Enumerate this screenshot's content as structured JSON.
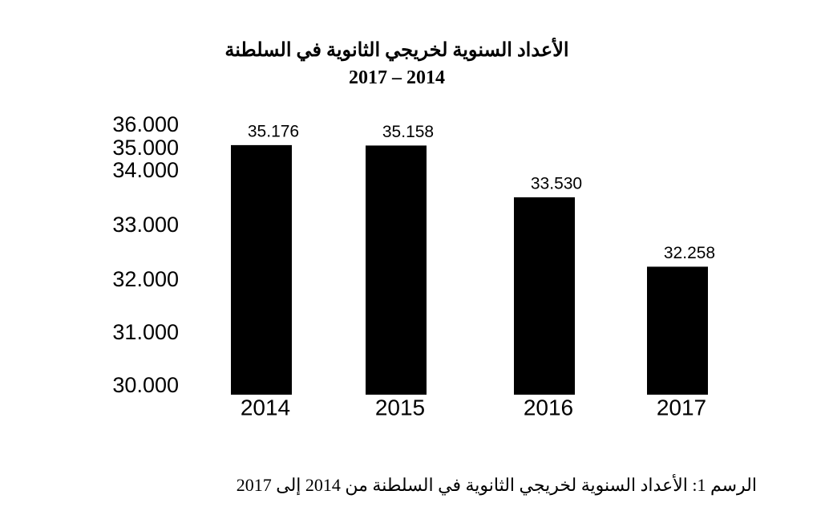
{
  "chart_data": {
    "type": "bar",
    "title": "الأعداد السنوية لخريجي الثانوية في السلطنة",
    "subtitle": "2017 – 2014",
    "categories": [
      "2014",
      "2015",
      "2016",
      "2017"
    ],
    "values": [
      35176,
      35158,
      33530,
      32258
    ],
    "value_labels": [
      "35.176",
      "35.158",
      "33.530",
      "32.258"
    ],
    "y_ticks": [
      {
        "value": 30000,
        "label": "30.000"
      },
      {
        "value": 31000,
        "label": "31.000"
      },
      {
        "value": 32000,
        "label": "32.000"
      },
      {
        "value": 33000,
        "label": "33.000"
      },
      {
        "value": 34000,
        "label": "34.000"
      },
      {
        "value": 35000,
        "label": "35.000"
      },
      {
        "value": 36000,
        "label": "36.000"
      }
    ],
    "ylim": [
      30000,
      36000
    ],
    "bar_color": "#000000",
    "grid": false,
    "legend": "none"
  },
  "caption": "الرسم 1: الأعداد السنوية لخريجي الثانوية في السلطنة من 2014 إلى 2017"
}
